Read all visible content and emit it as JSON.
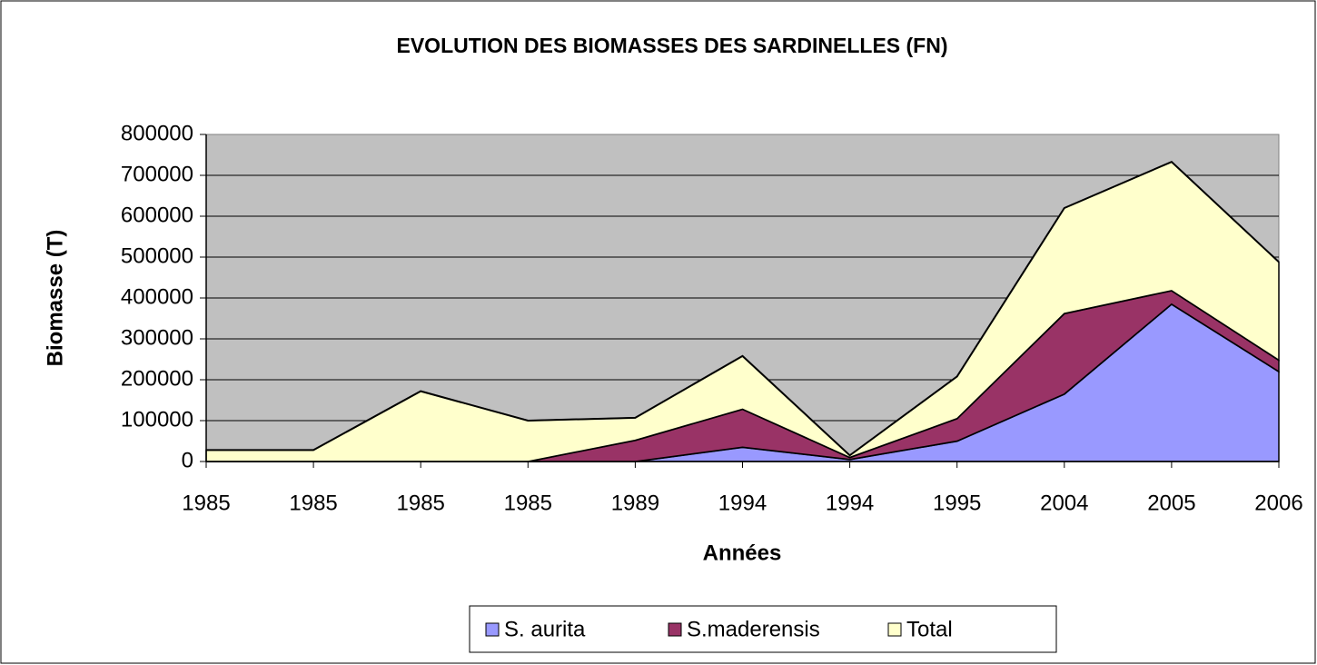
{
  "chart_data": {
    "type": "stacked-area",
    "title": "EVOLUTION DES BIOMASSES DES SARDINELLES (FN)",
    "x_label": "Années",
    "y_label": "Biomasse (T)",
    "categories": [
      "1985",
      "1985",
      "1985",
      "1985",
      "1989",
      "1994",
      "1994",
      "1995",
      "2004",
      "2005",
      "2006"
    ],
    "series": [
      {
        "name": "S. aurita",
        "color": "#9999ff",
        "values": [
          0,
          0,
          0,
          0,
          0,
          35000,
          5000,
          50000,
          165000,
          385000,
          220000
        ]
      },
      {
        "name": "S.maderensis",
        "color": "#993366",
        "values": [
          0,
          0,
          0,
          0,
          52000,
          93000,
          5000,
          55000,
          197000,
          33000,
          28000
        ]
      },
      {
        "name": "Total",
        "color": "#ffffcc",
        "values": [
          28000,
          28000,
          172000,
          100000,
          55000,
          130000,
          5000,
          103000,
          258000,
          315000,
          240000
        ]
      }
    ],
    "ylim": [
      0,
      800000
    ],
    "yticks": [
      0,
      100000,
      200000,
      300000,
      400000,
      500000,
      600000,
      700000,
      800000
    ],
    "grid": true,
    "legend": "bottom"
  }
}
